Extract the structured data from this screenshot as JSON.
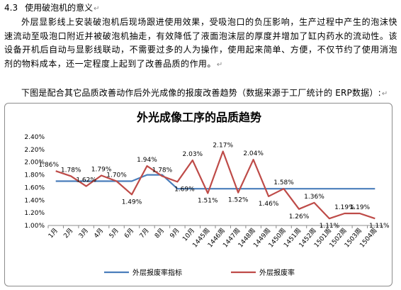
{
  "section": {
    "number": "4.3",
    "title": "使用破泡机的意义"
  },
  "paragraph": "外层显影线上安装破泡机后现场跟进使用效果，受吸泡口的负压影响，生产过程中产生的泡沫快速流动至吸泡口附近并被破泡机抽走，有效降低了液面泡沫层的厚度并增加了缸内药水的流动性。该设备开机后自动与显影线联动，不需要过多的人为操作，使用起来简单、方便，不仅节约了使用消泡剂的物料成本，还一定程度上起到了改善品质的作用。",
  "caption": "下图是配合其它品质改善动作后外光成像的报废改善趋势（数据来源于工厂统计的 ERP数据）:",
  "chart_data": {
    "type": "line",
    "title": "外光成像工序的品质趋势",
    "categories": [
      "1月",
      "2月",
      "3月",
      "4月",
      "5月",
      "6月",
      "7月",
      "8月",
      "9月",
      "10月",
      "1445周",
      "1446周",
      "1447周",
      "1448周",
      "1449周",
      "1450周",
      "1451周",
      "1452周",
      "1501周",
      "1502周",
      "1503周",
      "1504周"
    ],
    "yticks": [
      "1.00%",
      "1.20%",
      "1.40%",
      "1.60%",
      "1.80%",
      "2.00%",
      "2.20%",
      "2.40%"
    ],
    "ylim": [
      1.0,
      2.4
    ],
    "grid": false,
    "legend_position": "bottom",
    "series": [
      {
        "name": "外层报废率指标",
        "color": "#4a7ebb",
        "values": [
          1.7,
          1.7,
          1.7,
          1.7,
          1.7,
          1.7,
          1.8,
          1.8,
          1.58,
          1.58,
          1.58,
          1.58,
          1.58,
          1.58,
          1.58,
          1.58,
          1.58,
          1.58,
          1.58,
          1.58,
          1.58,
          1.58
        ]
      },
      {
        "name": "外层报废率",
        "color": "#be4b48",
        "values": [
          1.86,
          1.78,
          1.62,
          1.79,
          1.7,
          1.49,
          1.94,
          1.78,
          1.69,
          2.03,
          1.51,
          2.17,
          1.52,
          2.04,
          1.46,
          1.58,
          1.26,
          1.36,
          1.11,
          1.19,
          1.19,
          1.11
        ],
        "labels": [
          "1.86%",
          "1.78%",
          "1.62%",
          "1.79%",
          "1.70%",
          "1.49%",
          "1.94%",
          "1.78%",
          "1.69%",
          "2.03%",
          "1.51%",
          "2.17%",
          "1.52%",
          "2.04%",
          "1.46%",
          "1.58%",
          "1.26%",
          "1.36%",
          "1.11%",
          "1.19%",
          "1.19%",
          "1.11%"
        ]
      }
    ]
  }
}
